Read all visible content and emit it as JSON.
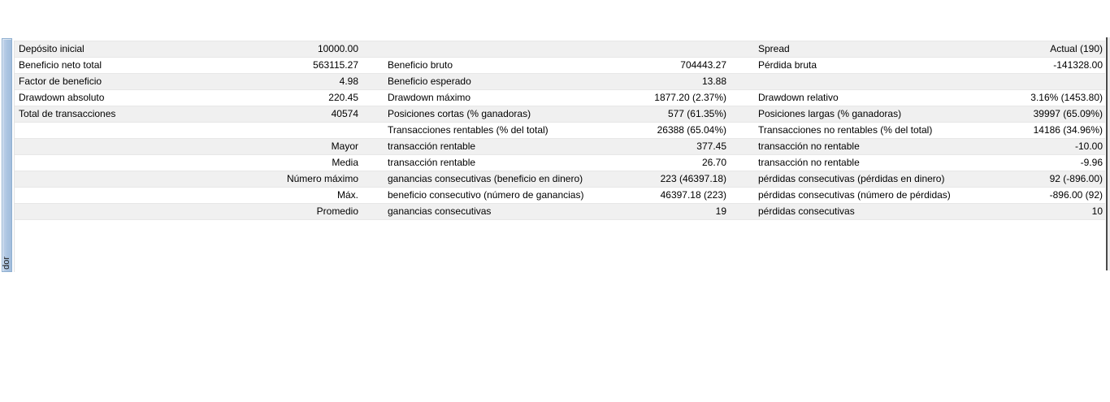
{
  "tester_panel": {
    "tab": {
      "visible_label": "dor"
    },
    "report_table": {
      "rows": [
        {
          "label1": "Depósito inicial",
          "value1": "10000.00",
          "label2": "",
          "value2": "",
          "label3": "Spread",
          "value3": "Actual (190)"
        },
        {
          "label1": "Beneficio neto total",
          "value1": "563115.27",
          "label2": "Beneficio bruto",
          "value2": "704443.27",
          "label3": "Pérdida bruta",
          "value3": "-141328.00"
        },
        {
          "label1": "Factor de beneficio",
          "value1": "4.98",
          "label2": "Beneficio esperado",
          "value2": "13.88",
          "label3": "",
          "value3": ""
        },
        {
          "label1": "Drawdown absoluto",
          "value1": "220.45",
          "label2": "Drawdown máximo",
          "value2": "1877.20 (2.37%)",
          "label3": "Drawdown relativo",
          "value3": "3.16% (1453.80)"
        },
        {
          "label1": "Total de transacciones",
          "value1": "40574",
          "label2": "Posiciones cortas (% ganadoras)",
          "value2": "577 (61.35%)",
          "label3": "Posiciones largas (% ganadoras)",
          "value3": "39997 (65.09%)"
        },
        {
          "label1": "",
          "value1": "",
          "label2": "Transacciones rentables (% del total)",
          "value2": "26388 (65.04%)",
          "label3": "Transacciones no rentables (% del total)",
          "value3": "14186 (34.96%)"
        },
        {
          "label1": "",
          "value1": "Mayor",
          "label2": "transacción rentable",
          "value2": "377.45",
          "label3": "transacción no rentable",
          "value3": "-10.00"
        },
        {
          "label1": "",
          "value1": "Media",
          "label2": "transacción rentable",
          "value2": "26.70",
          "label3": "transacción no rentable",
          "value3": "-9.96"
        },
        {
          "label1": "",
          "value1": "Número máximo",
          "label2": "ganancias consecutivas (beneficio en dinero)",
          "value2": "223 (46397.18)",
          "label3": "pérdidas consecutivas (pérdidas en dinero)",
          "value3": "92 (-896.00)"
        },
        {
          "label1": "",
          "value1": "Máx.",
          "label2": "beneficio consecutivo (número de ganancias)",
          "value2": "46397.18 (223)",
          "label3": "pérdidas consecutivas (número de pérdidas)",
          "value3": "-896.00 (92)"
        },
        {
          "label1": "",
          "value1": "Promedio",
          "label2": "ganancias consecutivas",
          "value2": "19",
          "label3": "pérdidas consecutivas",
          "value3": "10"
        }
      ]
    },
    "colors": {
      "row_alt_background": "#f0f0f0",
      "row_separator": "#e7e7e7",
      "tab_fill": "#aac4e1",
      "tab_border": "#8fafd0",
      "panel_edge_dark": "#4a4a4a"
    }
  }
}
